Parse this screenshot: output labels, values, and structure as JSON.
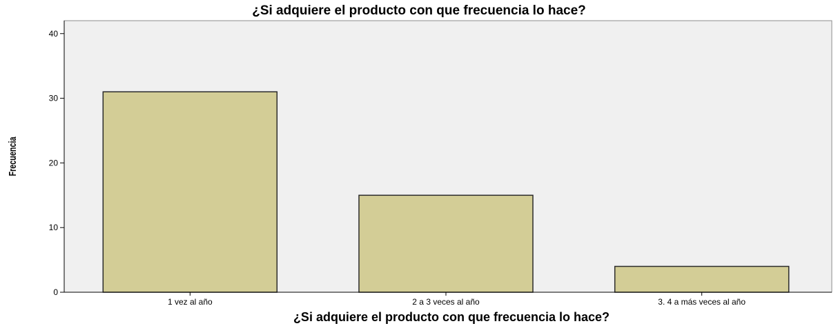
{
  "chart_data": {
    "type": "bar",
    "title": "¿Si adquiere el producto con que frecuencia lo hace?",
    "xlabel": "¿Si adquiere el producto con que frecuencia lo hace?",
    "ylabel": "Frecuencia",
    "categories": [
      "1 vez al año",
      "2 a 3 veces al año",
      "3. 4 a más veces al año"
    ],
    "values": [
      31,
      15,
      4
    ],
    "ylim": [
      0,
      42
    ],
    "yticks": [
      0,
      10,
      20,
      30,
      40
    ],
    "grid": false,
    "colors": {
      "bar_fill": "#d3cd96",
      "bar_stroke": "#2a2a2a",
      "plot_background": "#f0f0f0",
      "axis": "#000000"
    }
  }
}
